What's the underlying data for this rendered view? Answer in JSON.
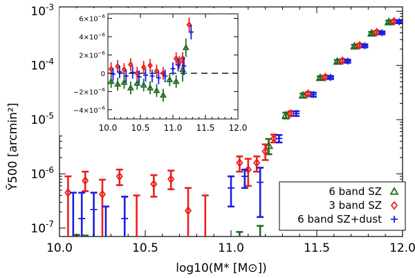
{
  "chart_data": [
    {
      "type": "scatter",
      "subtype": "errorbar",
      "panel": "main",
      "xlabel": "log10(M* [M⊙])",
      "ylabel": "Ỹ500 [arcmin²]",
      "xscale": "linear",
      "yscale": "log",
      "xlim": [
        10.0,
        12.0
      ],
      "ylim": [
        7e-08,
        0.0012
      ],
      "xticks": [
        10.0,
        10.5,
        11.0,
        11.5,
        12.0
      ],
      "xtick_labels": [
        "10.0",
        "10.5",
        "11.0",
        "11.5",
        "12.0"
      ],
      "yticks": [
        1e-07,
        1e-06,
        1e-05,
        0.0001,
        0.001
      ],
      "ytick_labels": [
        {
          "base": "10",
          "exp": "-7"
        },
        {
          "base": "10",
          "exp": "-6"
        },
        {
          "base": "10",
          "exp": "-5"
        },
        {
          "base": "10",
          "exp": "-4"
        },
        {
          "base": "10",
          "exp": "-3"
        }
      ],
      "legend": {
        "position": "bottom-right",
        "entries": [
          {
            "label": "6 band SZ",
            "marker": "triangle",
            "color": "#1f6b1f"
          },
          {
            "label": "3 band SZ",
            "marker": "diamond",
            "color": "#e8201c"
          },
          {
            "label": "6 band SZ+dust",
            "marker": "plus",
            "color": "#1c1ce0"
          }
        ]
      },
      "series": [
        {
          "name": "6 band SZ",
          "marker": "triangle",
          "color": "#1f6b1f",
          "points": [
            {
              "x": 10.1,
              "y": null,
              "lo": null,
              "hi": 7.5e-08
            },
            {
              "x": 10.15,
              "y": null,
              "lo": null,
              "hi": 7.3e-08
            },
            {
              "x": 11.05,
              "y": null,
              "lo": null,
              "hi": 8.5e-08
            },
            {
              "x": 11.17,
              "y": null,
              "lo": null,
              "hi": 1.1e-07
            },
            {
              "x": 11.22,
              "y": 3.3e-06,
              "lo": 2.3e-06,
              "hi": 4.4e-06
            },
            {
              "x": 11.32,
              "y": 1.2e-05,
              "lo": 1.05e-05,
              "hi": 1.35e-05
            },
            {
              "x": 11.42,
              "y": 2.8e-05,
              "lo": 2.55e-05,
              "hi": 3.05e-05
            },
            {
              "x": 11.52,
              "y": 5.9e-05,
              "lo": 5.5e-05,
              "hi": 6.3e-05
            },
            {
              "x": 11.62,
              "y": 0.000118,
              "lo": 0.00011,
              "hi": 0.000126
            },
            {
              "x": 11.72,
              "y": 0.000225,
              "lo": 0.00021,
              "hi": 0.00024
            },
            {
              "x": 11.82,
              "y": 0.00039,
              "lo": 0.000365,
              "hi": 0.000415
            },
            {
              "x": 11.92,
              "y": 0.00063,
              "lo": 0.00059,
              "hi": 0.00067
            }
          ]
        },
        {
          "name": "3 band SZ",
          "marker": "diamond",
          "color": "#e8201c",
          "points": [
            {
              "x": 10.05,
              "y": 4.5e-07,
              "lo": 7e-08,
              "hi": 9e-07
            },
            {
              "x": 10.15,
              "y": 7.5e-07,
              "lo": 4.8e-07,
              "hi": 1.1e-06
            },
            {
              "x": 10.25,
              "y": 4.2e-07,
              "lo": 7e-08,
              "hi": 7.8e-07
            },
            {
              "x": 10.35,
              "y": 9e-07,
              "lo": 6.2e-07,
              "hi": 1.2e-06
            },
            {
              "x": 10.45,
              "y": null,
              "lo": 7e-08,
              "hi": 4e-07
            },
            {
              "x": 10.55,
              "y": 6.5e-07,
              "lo": 3.8e-07,
              "hi": 9.5e-07
            },
            {
              "x": 10.65,
              "y": 8e-07,
              "lo": 5.2e-07,
              "hi": 1.15e-06
            },
            {
              "x": 10.75,
              "y": 2.1e-07,
              "lo": 7e-08,
              "hi": 5.5e-07
            },
            {
              "x": 10.85,
              "y": null,
              "lo": 7e-08,
              "hi": 4e-07
            },
            {
              "x": 11.05,
              "y": 1.6e-06,
              "lo": 1.1e-06,
              "hi": 2.1e-06
            },
            {
              "x": 11.1,
              "y": 1.2e-06,
              "lo": 6e-07,
              "hi": 1.9e-06
            },
            {
              "x": 11.15,
              "y": 1.6e-06,
              "lo": 1.1e-06,
              "hi": 2.1e-06
            },
            {
              "x": 11.2,
              "y": 2.6e-06,
              "lo": 1.8e-06,
              "hi": 3.5e-06
            },
            {
              "x": 11.25,
              "y": 4.5e-06,
              "lo": 3.8e-06,
              "hi": 5.3e-06
            },
            {
              "x": 11.35,
              "y": 1.3e-05,
              "lo": 1.17e-05,
              "hi": 1.43e-05
            },
            {
              "x": 11.45,
              "y": 3e-05,
              "lo": 2.75e-05,
              "hi": 3.25e-05
            },
            {
              "x": 11.55,
              "y": 6.1e-05,
              "lo": 5.7e-05,
              "hi": 6.5e-05
            },
            {
              "x": 11.65,
              "y": 0.000122,
              "lo": 0.000114,
              "hi": 0.00013
            },
            {
              "x": 11.75,
              "y": 0.000235,
              "lo": 0.00022,
              "hi": 0.00025
            },
            {
              "x": 11.85,
              "y": 0.00041,
              "lo": 0.000385,
              "hi": 0.000435
            },
            {
              "x": 11.95,
              "y": 0.00065,
              "lo": 0.00061,
              "hi": 0.00069
            }
          ]
        },
        {
          "name": "6 band SZ+dust",
          "marker": "plus",
          "color": "#1c1ce0",
          "points": [
            {
              "x": 10.08,
              "y": null,
              "lo": 7e-08,
              "hi": 4.5e-07
            },
            {
              "x": 10.13,
              "y": 1.5e-07,
              "lo": 7e-08,
              "hi": 4.5e-07
            },
            {
              "x": 10.2,
              "y": 2.2e-07,
              "lo": 7e-08,
              "hi": 4.5e-07
            },
            {
              "x": 10.27,
              "y": null,
              "lo": 7e-08,
              "hi": 2.5e-07
            },
            {
              "x": 10.38,
              "y": 1.5e-07,
              "lo": 7e-08,
              "hi": 3.8e-07
            },
            {
              "x": 11.0,
              "y": 5.5e-07,
              "lo": 2.5e-07,
              "hi": 9e-07
            },
            {
              "x": 11.08,
              "y": 9e-07,
              "lo": 5.5e-07,
              "hi": 1.2e-06
            },
            {
              "x": 11.17,
              "y": 7e-07,
              "lo": 1.6e-07,
              "hi": 1.3e-06
            },
            {
              "x": 11.28,
              "y": 4.5e-06,
              "lo": 3.8e-06,
              "hi": 5.2e-06
            },
            {
              "x": 11.38,
              "y": 1.3e-05,
              "lo": 1.17e-05,
              "hi": 1.43e-05
            },
            {
              "x": 11.48,
              "y": 2.9e-05,
              "lo": 2.65e-05,
              "hi": 3.15e-05
            },
            {
              "x": 11.58,
              "y": 6e-05,
              "lo": 5.6e-05,
              "hi": 6.4e-05
            },
            {
              "x": 11.68,
              "y": 0.00012,
              "lo": 0.000112,
              "hi": 0.000128
            },
            {
              "x": 11.78,
              "y": 0.00023,
              "lo": 0.000215,
              "hi": 0.000245
            },
            {
              "x": 11.88,
              "y": 0.0004,
              "lo": 0.000375,
              "hi": 0.000425
            },
            {
              "x": 11.98,
              "y": 0.00064,
              "lo": 0.0006,
              "hi": 0.00068
            }
          ]
        }
      ]
    },
    {
      "type": "scatter",
      "subtype": "errorbar",
      "panel": "inset",
      "xscale": "linear",
      "yscale": "linear",
      "xlim": [
        10.0,
        12.0
      ],
      "ylim": [
        -5e-06,
        6.5e-06
      ],
      "xticks": [
        10.0,
        10.5,
        11.0,
        11.5,
        12.0
      ],
      "xtick_labels": [
        "10.0",
        "10.5",
        "11.0",
        "11.5",
        "12.0"
      ],
      "yticks": [
        -4e-06,
        -2e-06,
        0,
        2e-06,
        4e-06,
        6e-06
      ],
      "ytick_labels": [
        {
          "base": "−4×10",
          "exp": "−6"
        },
        {
          "base": "−2×10",
          "exp": "−6"
        },
        {
          "base": "0",
          "exp": ""
        },
        {
          "base": "2×10",
          "exp": "−6"
        },
        {
          "base": "4×10",
          "exp": "−6"
        },
        {
          "base": "6×10",
          "exp": "−6"
        }
      ],
      "zero_line": "dashed",
      "series": [
        {
          "name": "6 band SZ",
          "marker": "triangle",
          "color": "#1f6b1f",
          "points": [
            {
              "x": 10.05,
              "y": -9e-07,
              "lo": -1.6e-06,
              "hi": -2e-07
            },
            {
              "x": 10.15,
              "y": -1.2e-06,
              "lo": -1.9e-06,
              "hi": -5e-07
            },
            {
              "x": 10.25,
              "y": -1e-06,
              "lo": -1.7e-06,
              "hi": -3e-07
            },
            {
              "x": 10.35,
              "y": -1.6e-06,
              "lo": -2.3e-06,
              "hi": -9e-07
            },
            {
              "x": 10.45,
              "y": -1.1e-06,
              "lo": -1.8e-06,
              "hi": -4e-07
            },
            {
              "x": 10.55,
              "y": -1.3e-06,
              "lo": -2e-06,
              "hi": -6e-07
            },
            {
              "x": 10.65,
              "y": -1.6e-06,
              "lo": -2.3e-06,
              "hi": -9e-07
            },
            {
              "x": 10.75,
              "y": -1.9e-06,
              "lo": -2.6e-06,
              "hi": -1.2e-06
            },
            {
              "x": 10.85,
              "y": -2.4e-06,
              "lo": -3.1e-06,
              "hi": -1.7e-06
            },
            {
              "x": 10.95,
              "y": -7e-07,
              "lo": -1.4e-06,
              "hi": 0.0
            },
            {
              "x": 11.05,
              "y": -9e-07,
              "lo": -1.6e-06,
              "hi": -2e-07
            },
            {
              "x": 11.15,
              "y": 4e-07,
              "lo": -9e-07,
              "hi": 1.8e-06
            },
            {
              "x": 11.2,
              "y": 2.8e-06,
              "lo": 1.8e-06,
              "hi": 3.8e-06
            }
          ]
        },
        {
          "name": "3 band SZ",
          "marker": "diamond",
          "color": "#e8201c",
          "points": [
            {
              "x": 10.05,
              "y": 4.5e-07,
              "lo": -3e-07,
              "hi": 1.2e-06
            },
            {
              "x": 10.15,
              "y": 7.5e-07,
              "lo": 5e-08,
              "hi": 1.45e-06
            },
            {
              "x": 10.25,
              "y": 4e-07,
              "lo": -3e-07,
              "hi": 1.1e-06
            },
            {
              "x": 10.35,
              "y": 9.5e-07,
              "lo": 2.5e-07,
              "hi": 1.65e-06
            },
            {
              "x": 10.45,
              "y": 0.0,
              "lo": -7e-07,
              "hi": 7e-07
            },
            {
              "x": 10.55,
              "y": 6.5e-07,
              "lo": -5e-08,
              "hi": 1.35e-06
            },
            {
              "x": 10.65,
              "y": 8.5e-07,
              "lo": 1.5e-07,
              "hi": 1.55e-06
            },
            {
              "x": 10.75,
              "y": 2.5e-07,
              "lo": -4.5e-07,
              "hi": 9.5e-07
            },
            {
              "x": 10.85,
              "y": 0.0,
              "lo": -7e-07,
              "hi": 7e-07
            },
            {
              "x": 11.05,
              "y": 1.6e-06,
              "lo": 9e-07,
              "hi": 2.3e-06
            },
            {
              "x": 11.1,
              "y": 1.2e-06,
              "lo": 5e-07,
              "hi": 1.9e-06
            },
            {
              "x": 11.15,
              "y": 1.6e-06,
              "lo": 9e-07,
              "hi": 2.3e-06
            },
            {
              "x": 11.25,
              "y": 5.3e-06,
              "lo": 4.5e-06,
              "hi": 6.1e-06
            }
          ]
        },
        {
          "name": "6 band SZ+dust",
          "marker": "plus",
          "color": "#1c1ce0",
          "points": [
            {
              "x": 10.08,
              "y": -1e-07,
              "lo": -8e-07,
              "hi": 6e-07
            },
            {
              "x": 10.18,
              "y": 1.5e-07,
              "lo": -5.5e-07,
              "hi": 8.5e-07
            },
            {
              "x": 10.28,
              "y": -3e-07,
              "lo": -1e-06,
              "hi": 4e-07
            },
            {
              "x": 10.38,
              "y": 1e-07,
              "lo": -6e-07,
              "hi": 8e-07
            },
            {
              "x": 10.48,
              "y": -4e-07,
              "lo": -1.1e-06,
              "hi": 3e-07
            },
            {
              "x": 10.58,
              "y": -2e-07,
              "lo": -9e-07,
              "hi": 5e-07
            },
            {
              "x": 10.68,
              "y": -3e-07,
              "lo": -1e-06,
              "hi": 4e-07
            },
            {
              "x": 10.78,
              "y": -5e-07,
              "lo": -1.2e-06,
              "hi": 2e-07
            },
            {
              "x": 10.88,
              "y": -3e-07,
              "lo": -1e-06,
              "hi": 4e-07
            },
            {
              "x": 11.0,
              "y": 5e-07,
              "lo": -2e-07,
              "hi": 1.2e-06
            },
            {
              "x": 11.08,
              "y": 9e-07,
              "lo": 2e-07,
              "hi": 1.6e-06
            },
            {
              "x": 11.17,
              "y": 8e-07,
              "lo": -2e-07,
              "hi": 1.8e-06
            },
            {
              "x": 11.28,
              "y": 4.5e-06,
              "lo": 3.7e-06,
              "hi": 5.3e-06
            }
          ]
        }
      ]
    }
  ]
}
